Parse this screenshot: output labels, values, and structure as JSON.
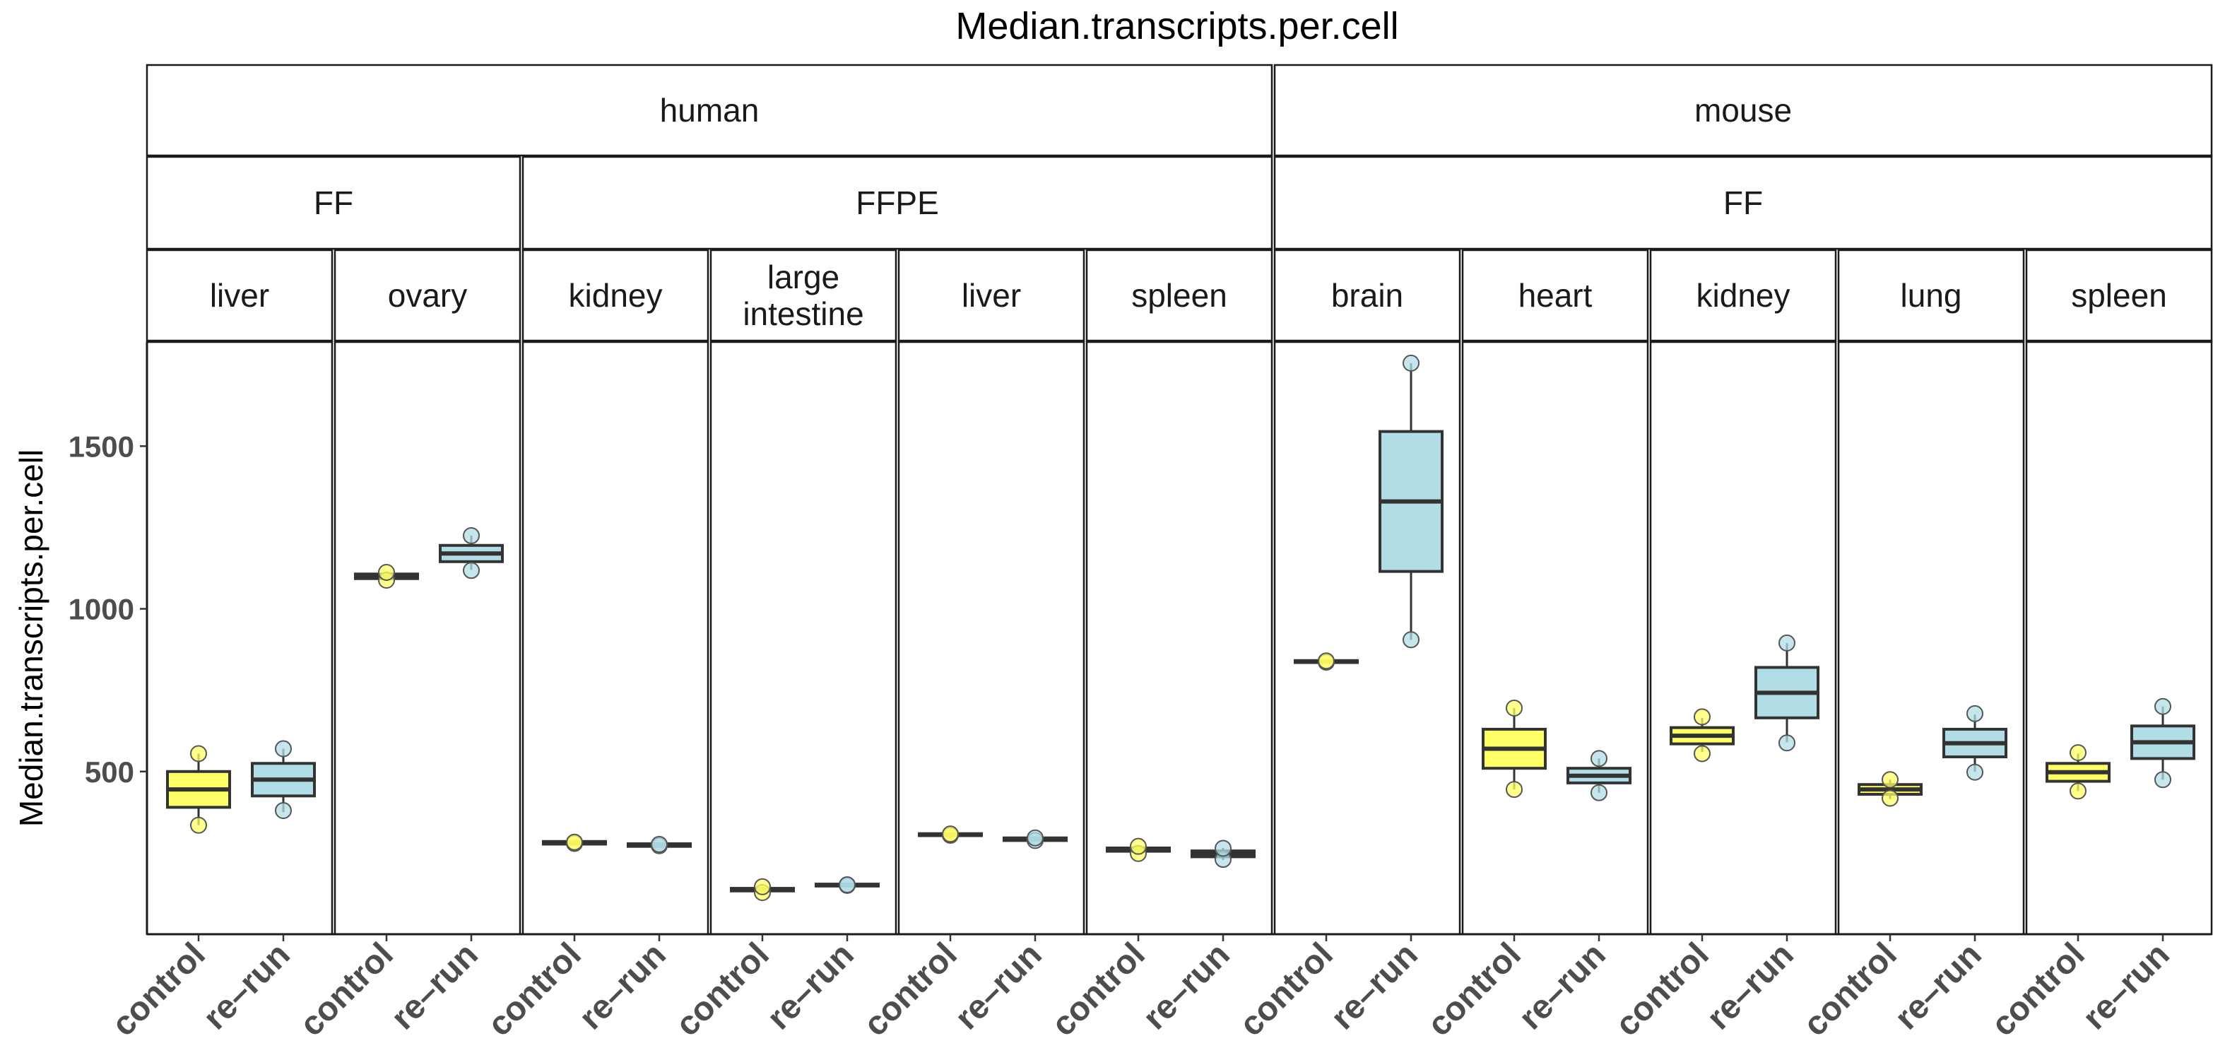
{
  "chart_data": {
    "type": "box",
    "title": "Median.transcripts.per.cell",
    "ylabel": "Median.transcripts.per.cell",
    "xlabel": "",
    "ylim": [
      0,
      1820
    ],
    "yticks": [
      "500",
      "1000",
      "1500"
    ],
    "categories": [
      "control",
      "re–run"
    ],
    "colors": {
      "control": "#ffff66",
      "re-run": "#b0dde6",
      "box_stroke": "#333333",
      "point_stroke": "#555555"
    },
    "grid": false,
    "species_strips": [
      {
        "label": "human",
        "panels": [
          0,
          5
        ]
      },
      {
        "label": "mouse",
        "panels": [
          6,
          10
        ]
      }
    ],
    "prep_strips": [
      {
        "label": "FF",
        "panels": [
          0,
          1
        ]
      },
      {
        "label": "FFPE",
        "panels": [
          2,
          5
        ]
      },
      {
        "label": "FF",
        "panels": [
          6,
          10
        ]
      }
    ],
    "panels": [
      {
        "tissue": [
          "liver"
        ],
        "boxes": [
          {
            "group": "control",
            "q1": 390,
            "median": 445,
            "q3": 500,
            "whisker_low": 335,
            "whisker_high": 555,
            "points": [
              335,
              555
            ]
          },
          {
            "group": "re-run",
            "q1": 425,
            "median": 475,
            "q3": 525,
            "whisker_low": 375,
            "whisker_high": 570,
            "points": [
              380,
              570
            ]
          }
        ]
      },
      {
        "tissue": [
          "ovary"
        ],
        "boxes": [
          {
            "group": "control",
            "q1": 1093,
            "median": 1100,
            "q3": 1107,
            "whisker_low": 1085,
            "whisker_high": 1115,
            "points": [
              1088,
              1112
            ]
          },
          {
            "group": "re-run",
            "q1": 1145,
            "median": 1170,
            "q3": 1195,
            "whisker_low": 1120,
            "whisker_high": 1225,
            "points": [
              1118,
              1225
            ]
          }
        ]
      },
      {
        "tissue": [
          "kidney"
        ],
        "boxes": [
          {
            "group": "control",
            "q1": 277,
            "median": 281,
            "q3": 285,
            "whisker_low": 275,
            "whisker_high": 287,
            "points": [
              279,
              283
            ]
          },
          {
            "group": "re-run",
            "q1": 270,
            "median": 274,
            "q3": 278,
            "whisker_low": 268,
            "whisker_high": 280,
            "points": [
              272,
              276
            ]
          }
        ]
      },
      {
        "tissue": [
          "large",
          "intestine"
        ],
        "boxes": [
          {
            "group": "control",
            "q1": 133,
            "median": 137,
            "q3": 141,
            "whisker_low": 128,
            "whisker_high": 145,
            "points": [
              128,
              146
            ]
          },
          {
            "group": "re-run",
            "q1": 148,
            "median": 151,
            "q3": 154,
            "whisker_low": 146,
            "whisker_high": 156,
            "points": [
              150,
              152
            ]
          }
        ]
      },
      {
        "tissue": [
          "liver"
        ],
        "boxes": [
          {
            "group": "control",
            "q1": 303,
            "median": 306,
            "q3": 309,
            "whisker_low": 300,
            "whisker_high": 312,
            "points": [
              304,
              308
            ]
          },
          {
            "group": "re-run",
            "q1": 288,
            "median": 292,
            "q3": 296,
            "whisker_low": 285,
            "whisker_high": 299,
            "points": [
              288,
              296
            ]
          }
        ]
      },
      {
        "tissue": [
          "spleen"
        ],
        "boxes": [
          {
            "group": "control",
            "q1": 255,
            "median": 260,
            "q3": 265,
            "whisker_low": 245,
            "whisker_high": 270,
            "points": [
              248,
              270
            ]
          },
          {
            "group": "re-run",
            "q1": 238,
            "median": 247,
            "q3": 256,
            "whisker_low": 228,
            "whisker_high": 265,
            "points": [
              230,
              264
            ]
          }
        ]
      },
      {
        "tissue": [
          "brain"
        ],
        "boxes": [
          {
            "group": "control",
            "q1": 835,
            "median": 838,
            "q3": 841,
            "whisker_low": 832,
            "whisker_high": 844,
            "points": [
              836,
              840
            ]
          },
          {
            "group": "re-run",
            "q1": 1115,
            "median": 1330,
            "q3": 1545,
            "whisker_low": 905,
            "whisker_high": 1755,
            "points": [
              905,
              1755
            ]
          }
        ]
      },
      {
        "tissue": [
          "heart"
        ],
        "boxes": [
          {
            "group": "control",
            "q1": 510,
            "median": 570,
            "q3": 630,
            "whisker_low": 445,
            "whisker_high": 695,
            "points": [
              445,
              695
            ]
          },
          {
            "group": "re-run",
            "q1": 465,
            "median": 487,
            "q3": 510,
            "whisker_low": 435,
            "whisker_high": 540,
            "points": [
              435,
              540
            ]
          }
        ]
      },
      {
        "tissue": [
          "kidney"
        ],
        "boxes": [
          {
            "group": "control",
            "q1": 585,
            "median": 610,
            "q3": 635,
            "whisker_low": 560,
            "whisker_high": 665,
            "points": [
              555,
              668
            ]
          },
          {
            "group": "re-run",
            "q1": 665,
            "median": 742,
            "q3": 820,
            "whisker_low": 590,
            "whisker_high": 895,
            "points": [
              588,
              895
            ]
          }
        ]
      },
      {
        "tissue": [
          "lung"
        ],
        "boxes": [
          {
            "group": "control",
            "q1": 430,
            "median": 445,
            "q3": 460,
            "whisker_low": 415,
            "whisker_high": 475,
            "points": [
              418,
              475
            ]
          },
          {
            "group": "re-run",
            "q1": 545,
            "median": 587,
            "q3": 630,
            "whisker_low": 500,
            "whisker_high": 675,
            "points": [
              498,
              678
            ]
          }
        ]
      },
      {
        "tissue": [
          "spleen"
        ],
        "boxes": [
          {
            "group": "control",
            "q1": 470,
            "median": 498,
            "q3": 525,
            "whisker_low": 440,
            "whisker_high": 555,
            "points": [
              440,
              558
            ]
          },
          {
            "group": "re-run",
            "q1": 540,
            "median": 590,
            "q3": 640,
            "whisker_low": 475,
            "whisker_high": 700,
            "points": [
              475,
              700
            ]
          }
        ]
      }
    ]
  }
}
